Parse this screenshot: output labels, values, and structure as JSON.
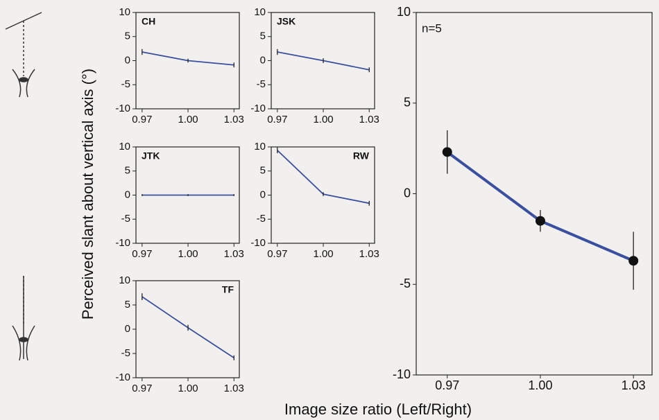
{
  "ylabel": "Perceived slant about vertical axis (°)",
  "xlabel": "Image size ratio (Left/Right)",
  "chart_data": [
    {
      "type": "line",
      "title": "CH",
      "label_position": "top-left",
      "x": [
        0.97,
        1.0,
        1.03
      ],
      "values": [
        1.8,
        0,
        -0.9
      ],
      "errors": [
        0.6,
        0.4,
        0.5
      ],
      "color": "#3a4fa0",
      "markers": false,
      "xlim": [
        0.966,
        1.0335
      ],
      "ylim": [
        -10,
        10
      ],
      "xticks": [
        0.97,
        {
          "value": 1.0,
          "label": "1.00"
        },
        1.03
      ],
      "yticks": [
        -10,
        -5,
        0,
        5,
        10
      ]
    },
    {
      "type": "line",
      "title": "JSK",
      "label_position": "top-left",
      "x": [
        0.97,
        1.0,
        1.03
      ],
      "values": [
        1.8,
        0,
        -1.9
      ],
      "errors": [
        0.6,
        0.5,
        0.5
      ],
      "color": "#3a4fa0",
      "markers": false,
      "xlim": [
        0.966,
        1.0335
      ],
      "ylim": [
        -10,
        10
      ],
      "xticks": [
        0.97,
        {
          "value": 1.0,
          "label": "1.00"
        },
        1.03
      ],
      "yticks": [
        -10,
        -5,
        0,
        5,
        10
      ]
    },
    {
      "type": "line",
      "title": "JTK",
      "label_position": "top-left",
      "x": [
        0.97,
        1.0,
        1.03
      ],
      "values": [
        0,
        0,
        0
      ],
      "errors": [
        0.2,
        0.2,
        0.2
      ],
      "color": "#3a4fa0",
      "markers": false,
      "xlim": [
        0.966,
        1.0335
      ],
      "ylim": [
        -10,
        10
      ],
      "xticks": [
        0.97,
        {
          "value": 1.0,
          "label": "1.00"
        },
        1.03
      ],
      "yticks": [
        -10,
        -5,
        0,
        5,
        10
      ]
    },
    {
      "type": "line",
      "title": "RW",
      "label_position": "top-right",
      "x": [
        0.97,
        1.0,
        1.03
      ],
      "values": [
        9.3,
        0.2,
        -1.7
      ],
      "errors": [
        0.6,
        0.4,
        0.5
      ],
      "color": "#3a4fa0",
      "markers": false,
      "xlim": [
        0.966,
        1.0335
      ],
      "ylim": [
        -10,
        10
      ],
      "xticks": [
        0.97,
        {
          "value": 1.0,
          "label": "1.00"
        },
        1.03
      ],
      "yticks": [
        -10,
        -5,
        0,
        5,
        10
      ]
    },
    {
      "type": "line",
      "title": "TF",
      "label_position": "top-right",
      "x": [
        0.97,
        1.0,
        1.03
      ],
      "values": [
        6.7,
        0.3,
        -5.9
      ],
      "errors": [
        0.7,
        0.6,
        0.5
      ],
      "color": "#3a4fa0",
      "markers": false,
      "xlim": [
        0.966,
        1.0335
      ],
      "ylim": [
        -10,
        10
      ],
      "xticks": [
        0.97,
        {
          "value": 1.0,
          "label": "1.00"
        },
        1.03
      ],
      "yticks": [
        -10,
        -5,
        0,
        5,
        10
      ]
    },
    {
      "type": "line",
      "title": "n=5",
      "label_position": "top-left",
      "x": [
        0.97,
        1.0,
        1.03
      ],
      "values": [
        2.3,
        -1.5,
        -3.7
      ],
      "errors": [
        1.2,
        0.6,
        1.6
      ],
      "color": "#3a4fa0",
      "markers": true,
      "xlim": [
        0.96,
        1.036
      ],
      "ylim": [
        -10,
        10
      ],
      "xticks": [
        0.97,
        {
          "value": 1.0,
          "label": "1.00"
        },
        1.03
      ],
      "yticks": [
        -10,
        -5,
        0,
        5,
        10
      ]
    }
  ]
}
